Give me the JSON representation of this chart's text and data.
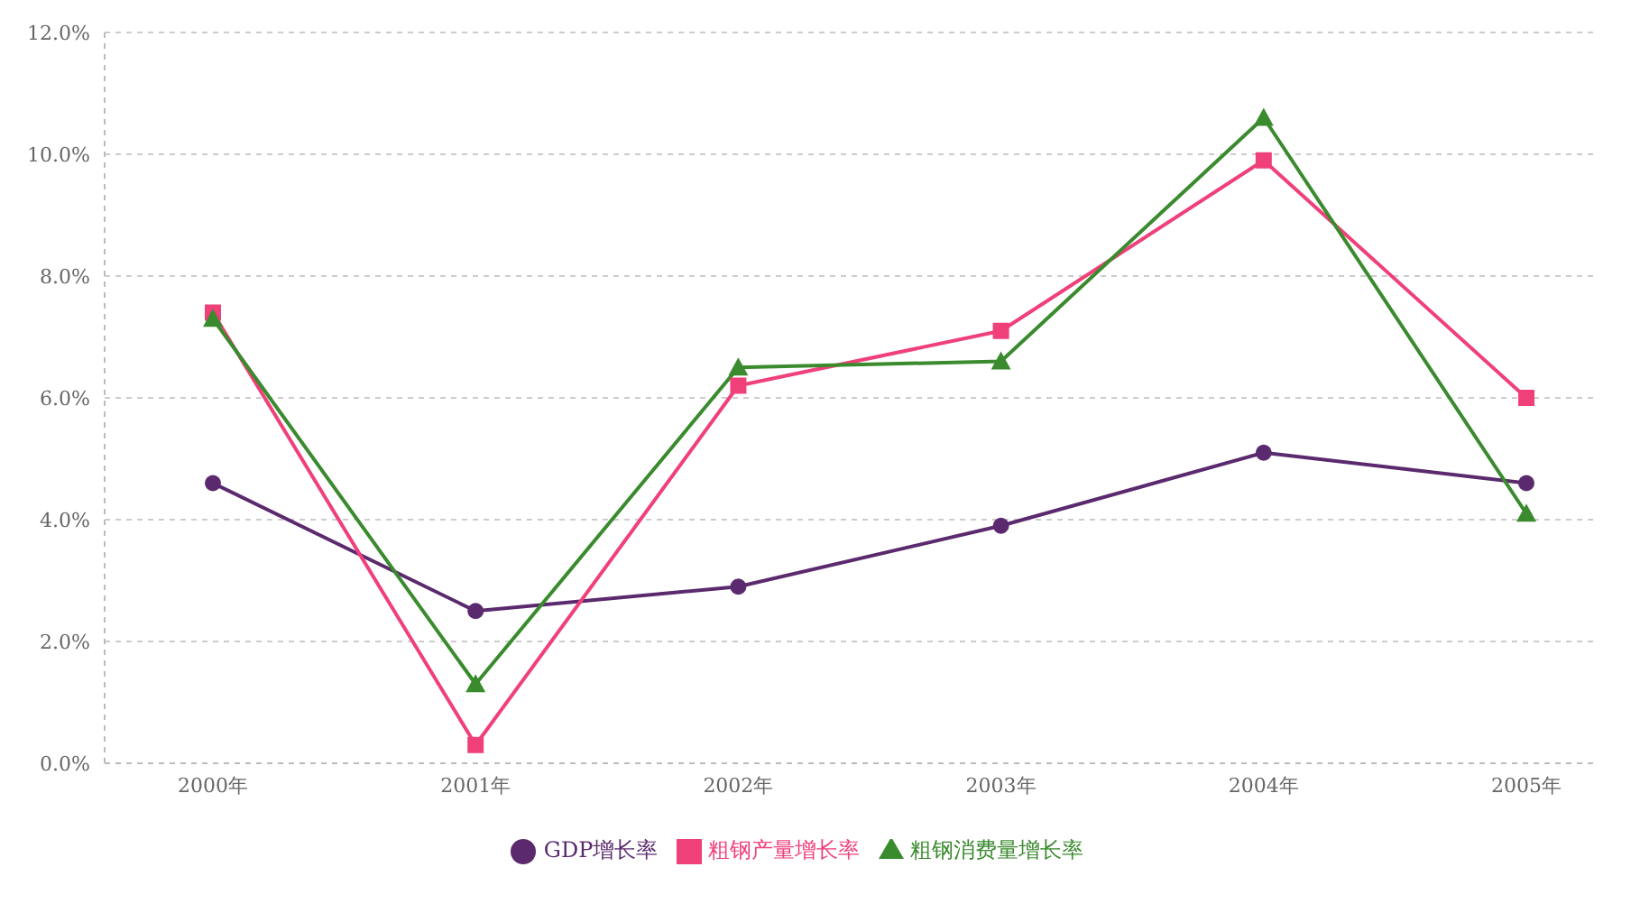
{
  "chart_data": {
    "type": "line",
    "categories": [
      "2000年",
      "2001年",
      "2002年",
      "2003年",
      "2004年",
      "2005年"
    ],
    "series": [
      {
        "name": "GDP增长率",
        "color": "#5b2a6e",
        "marker": "circle",
        "values": [
          4.6,
          2.5,
          2.9,
          3.9,
          5.1,
          4.6
        ]
      },
      {
        "name": "粗钢产量增长率",
        "color": "#f0407a",
        "marker": "square",
        "values": [
          7.4,
          0.3,
          6.2,
          7.1,
          9.9,
          6.0
        ]
      },
      {
        "name": "粗钢消费量增长率",
        "color": "#3a8a2e",
        "marker": "triangle",
        "values": [
          7.3,
          1.3,
          6.5,
          6.6,
          10.6,
          4.1
        ]
      }
    ],
    "ylim": [
      0,
      12
    ],
    "yticks": [
      {
        "value": 0,
        "label": "0.0%"
      },
      {
        "value": 2,
        "label": "2.0%"
      },
      {
        "value": 4,
        "label": "4.0%"
      },
      {
        "value": 6,
        "label": "6.0%"
      },
      {
        "value": 8,
        "label": "8.0%"
      },
      {
        "value": 10,
        "label": "10.0%"
      },
      {
        "value": 12,
        "label": "12.0%"
      }
    ],
    "grid": "y",
    "legend": "bottom",
    "line_style": "solid"
  }
}
